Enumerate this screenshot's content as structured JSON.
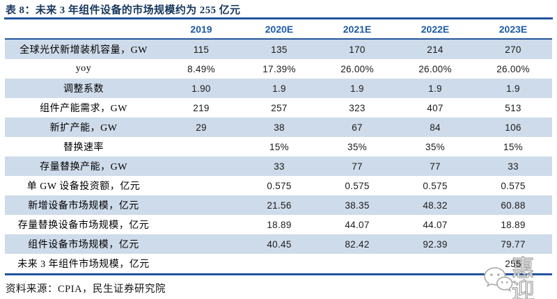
{
  "title": "表 8：未来 3 年组件设备的市场规模约为 255 亿元",
  "table": {
    "columns": [
      "",
      "2019",
      "2020E",
      "2021E",
      "2022E",
      "2023E"
    ],
    "rows": [
      {
        "label": "全球光伏新增装机容量，GW",
        "values": [
          "115",
          "135",
          "170",
          "214",
          "270"
        ]
      },
      {
        "label": "yoy",
        "values": [
          "8.49%",
          "17.39%",
          "26.00%",
          "26.00%",
          "26.00%"
        ]
      },
      {
        "label": "调整系数",
        "values": [
          "1.90",
          "1.9",
          "1.9",
          "1.9",
          "1.9"
        ]
      },
      {
        "label": "组件产能需求，GW",
        "values": [
          "219",
          "257",
          "323",
          "407",
          "513"
        ]
      },
      {
        "label": "新扩产能，GW",
        "values": [
          "29",
          "38",
          "67",
          "84",
          "106"
        ]
      },
      {
        "label": "替换速率",
        "values": [
          "",
          "15%",
          "35%",
          "35%",
          "15%"
        ]
      },
      {
        "label": "存量替换产能，GW",
        "values": [
          "",
          "33",
          "77",
          "77",
          "33"
        ]
      },
      {
        "label": "单 GW 设备投资额，亿元",
        "values": [
          "",
          "0.575",
          "0.575",
          "0.575",
          "0.575"
        ]
      },
      {
        "label": "新增设备市场规模，亿元",
        "values": [
          "",
          "21.56",
          "38.35",
          "48.32",
          "60.88"
        ]
      },
      {
        "label": "存量替换设备市场规模，亿元",
        "values": [
          "",
          "18.89",
          "44.07",
          "44.07",
          "18.89"
        ]
      },
      {
        "label": "组件设备市场规模，亿元",
        "values": [
          "",
          "40.45",
          "82.42",
          "92.39",
          "79.77"
        ]
      },
      {
        "label": "未来 3 年组件市场规模，亿元",
        "values": [
          "",
          "",
          "",
          "",
          "255"
        ]
      }
    ]
  },
  "source": "资料来源：CPIA，民生证券研究院",
  "watermark": {
    "icon": "wechat-icon",
    "text": "惠迎"
  },
  "colors": {
    "navy": "#17375E",
    "line": "#24549C",
    "header_blue": "#1D5AA5",
    "stripe": "#CEDBEA"
  }
}
